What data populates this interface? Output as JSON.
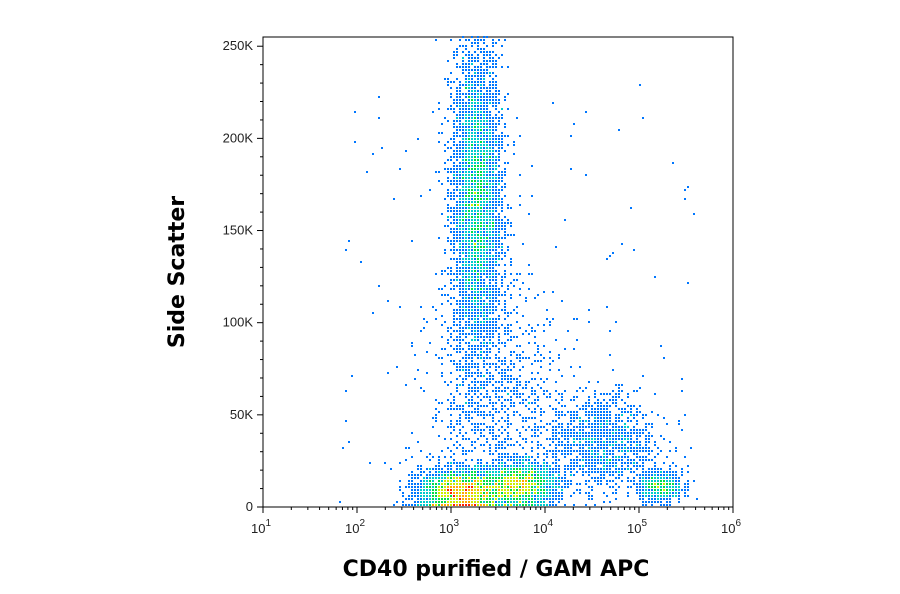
{
  "chart_data": {
    "type": "scatter",
    "subtype": "flow-cytometry-density-dot-plot",
    "xlabel": "CD40 purified / GAM APC",
    "ylabel": "Side Scatter",
    "x_scale": "log",
    "xlim": [
      10,
      1000000
    ],
    "ylim": [
      0,
      255000
    ],
    "x_ticks": [
      {
        "value": 10,
        "base": "10",
        "exp": "1"
      },
      {
        "value": 100,
        "base": "10",
        "exp": "2"
      },
      {
        "value": 1000,
        "base": "10",
        "exp": "3"
      },
      {
        "value": 10000,
        "base": "10",
        "exp": "4"
      },
      {
        "value": 100000,
        "base": "10",
        "exp": "5"
      },
      {
        "value": 1000000,
        "base": "10",
        "exp": "6"
      }
    ],
    "y_ticks": [
      {
        "value": 0,
        "label": "0"
      },
      {
        "value": 50000,
        "label": "50K"
      },
      {
        "value": 100000,
        "label": "100K"
      },
      {
        "value": 150000,
        "label": "150K"
      },
      {
        "value": 200000,
        "label": "200K"
      },
      {
        "value": 250000,
        "label": "250K"
      }
    ],
    "grid": false,
    "legend": "none",
    "color_scale": [
      "#0000cc",
      "#0077ff",
      "#00cccc",
      "#00dd44",
      "#ccee00",
      "#ffaa00",
      "#ff2200"
    ],
    "populations": [
      {
        "x_center": 1900,
        "y_center": 165000,
        "x_spread_log": 0.13,
        "y_spread": 42000,
        "events": 5200
      },
      {
        "x_center": 1300,
        "y_center": 8000,
        "x_spread_log": 0.22,
        "y_spread": 6000,
        "events": 3800
      },
      {
        "x_center": 5500,
        "y_center": 12000,
        "x_spread_log": 0.2,
        "y_spread": 6000,
        "events": 2600
      },
      {
        "x_center": 40000,
        "y_center": 35000,
        "x_spread_log": 0.28,
        "y_spread": 13000,
        "events": 1300
      },
      {
        "x_center": 170000,
        "y_center": 11000,
        "x_spread_log": 0.12,
        "y_spread": 4000,
        "events": 650
      },
      {
        "x_center": 3000,
        "y_center": 60000,
        "x_spread_log": 0.35,
        "y_spread": 30000,
        "events": 900
      }
    ]
  }
}
